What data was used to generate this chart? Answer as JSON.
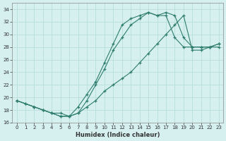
{
  "xlabel": "Humidex (Indice chaleur)",
  "bg_color": "#d6f0f0",
  "grid_color": "#b8dede",
  "line_color": "#2e7d6e",
  "xlim": [
    -0.5,
    23.5
  ],
  "ylim": [
    16,
    35
  ],
  "xticks": [
    0,
    1,
    2,
    3,
    4,
    5,
    6,
    7,
    8,
    9,
    10,
    11,
    12,
    13,
    14,
    15,
    16,
    17,
    18,
    19,
    20,
    21,
    22,
    23
  ],
  "yticks": [
    16,
    18,
    20,
    22,
    24,
    26,
    28,
    30,
    32,
    34
  ],
  "line1_x": [
    0,
    1,
    2,
    3,
    4,
    5,
    6,
    7,
    8,
    9,
    10,
    11,
    12,
    13,
    14,
    15,
    16,
    17,
    18,
    19,
    20,
    21,
    22,
    23
  ],
  "line1_y": [
    19.5,
    19.0,
    18.5,
    18.0,
    17.5,
    17.0,
    17.0,
    17.5,
    19.5,
    22.0,
    24.5,
    27.5,
    29.5,
    31.5,
    32.5,
    33.5,
    33.0,
    33.5,
    33.0,
    29.5,
    28.0,
    28.0,
    28.0,
    28.0
  ],
  "line2_x": [
    0,
    2,
    3,
    4,
    5,
    6,
    7,
    8,
    9,
    10,
    11,
    12,
    13,
    14,
    15,
    16,
    17,
    18,
    19,
    20,
    21,
    22,
    23
  ],
  "line2_y": [
    19.5,
    18.5,
    18.0,
    17.5,
    17.5,
    17.0,
    18.5,
    20.5,
    22.5,
    25.5,
    28.5,
    31.5,
    32.5,
    33.0,
    33.5,
    33.0,
    33.0,
    29.5,
    28.0,
    28.0,
    28.0,
    28.0,
    28.5
  ],
  "line3_x": [
    0,
    1,
    2,
    3,
    4,
    5,
    6,
    7,
    8,
    9,
    10,
    11,
    12,
    13,
    14,
    15,
    16,
    17,
    18,
    19,
    20,
    21,
    22,
    23
  ],
  "line3_y": [
    19.5,
    19.0,
    18.5,
    18.0,
    17.5,
    17.0,
    17.0,
    17.5,
    18.5,
    19.5,
    21.0,
    22.0,
    23.0,
    24.0,
    25.5,
    27.0,
    28.5,
    30.0,
    31.5,
    33.0,
    27.5,
    27.5,
    28.0,
    28.5
  ]
}
